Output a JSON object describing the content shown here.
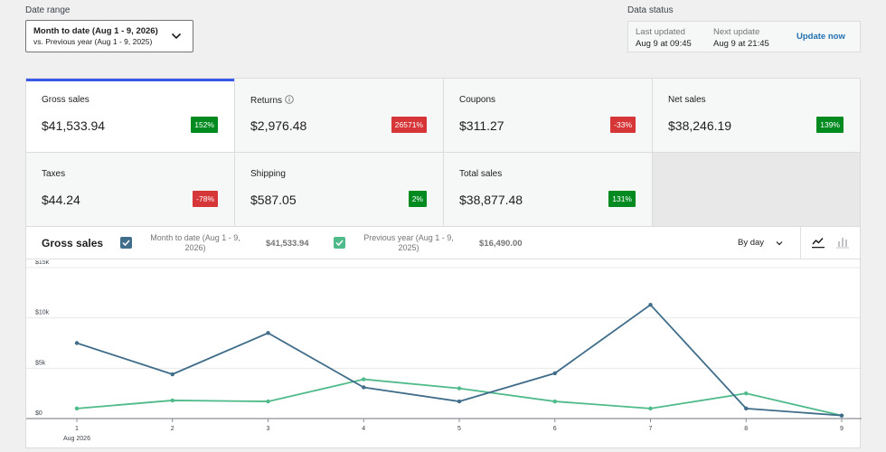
{
  "date_range": {
    "label": "Date range",
    "line1": "Month to date (Aug 1 - 9, 2026)",
    "line2": "vs. Previous year (Aug 1 - 9, 2025)"
  },
  "data_status": {
    "label": "Data status",
    "last_updated_label": "Last updated",
    "last_updated_value": "Aug 9 at 09:45",
    "next_update_label": "Next update",
    "next_update_value": "Aug 9 at 21:45",
    "update_now": "Update now"
  },
  "summary": [
    {
      "name": "Gross sales",
      "value": "$41,533.94",
      "delta": "152%",
      "trend": "up",
      "selected": true
    },
    {
      "name": "Returns",
      "value": "$2,976.48",
      "delta": "26571%",
      "trend": "down",
      "info": true
    },
    {
      "name": "Coupons",
      "value": "$311.27",
      "delta": "-33%",
      "trend": "down"
    },
    {
      "name": "Net sales",
      "value": "$38,246.19",
      "delta": "139%",
      "trend": "up"
    },
    {
      "name": "Taxes",
      "value": "$44.24",
      "delta": "-78%",
      "trend": "down"
    },
    {
      "name": "Shipping",
      "value": "$587.05",
      "delta": "2%",
      "trend": "up"
    },
    {
      "name": "Total sales",
      "value": "$38,877.48",
      "delta": "131%",
      "trend": "up"
    }
  ],
  "chart_panel": {
    "title": "Gross sales",
    "current_label": "Month to date (Aug 1 - 9, 2026)",
    "current_total": "$41,533.94",
    "previous_label": "Previous year (Aug 1 - 9, 2025)",
    "previous_total": "$16,490.00",
    "interval": "By day",
    "chart_type_icons": [
      "line-chart-icon",
      "bar-chart-icon"
    ]
  },
  "colors": {
    "current": "#3f6d8a",
    "previous": "#4fba8a",
    "accent": "#3858e9",
    "positive": "#008a20",
    "negative": "#d63638",
    "link": "#2271b1"
  },
  "chart_data": {
    "type": "line",
    "x": [
      1,
      2,
      3,
      4,
      5,
      6,
      7,
      8,
      9
    ],
    "x_sublabel": "Aug 2026",
    "y_ticks": [
      "$0",
      "$5k",
      "$10k",
      "$15k"
    ],
    "ylim": [
      0,
      15000
    ],
    "grid": true,
    "series": [
      {
        "name": "Month to date (Aug 1 - 9, 2026)",
        "color": "#3f6d8a",
        "values": [
          7500,
          4400,
          8500,
          3100,
          1700,
          4500,
          11300,
          1000,
          300
        ]
      },
      {
        "name": "Previous year (Aug 1 - 9, 2025)",
        "color": "#4fba8a",
        "values": [
          1000,
          1800,
          1700,
          3900,
          3000,
          1700,
          1000,
          2500,
          300
        ]
      }
    ]
  }
}
